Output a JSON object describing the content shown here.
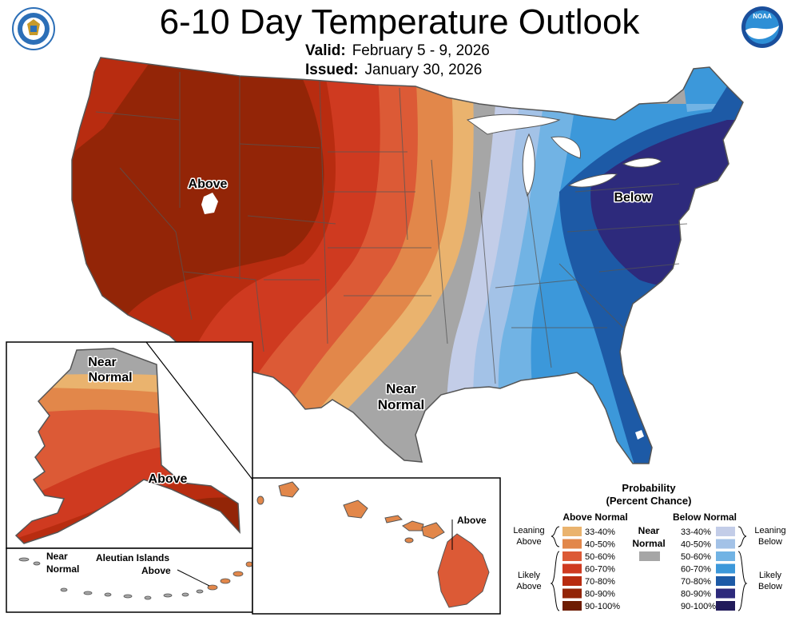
{
  "header": {
    "title": "6-10 Day Temperature Outlook",
    "valid_label": "Valid:",
    "valid_value": "February 5 - 9, 2026",
    "issued_label": "Issued:",
    "issued_value": "January 30, 2026"
  },
  "logos": {
    "left": "department-of-commerce-seal",
    "right": "noaa-logo"
  },
  "map_labels": {
    "west": "Above",
    "east": "Below",
    "texas_line1": "Near",
    "texas_line2": "Normal",
    "alaska_near_line1": "Near",
    "alaska_near_line2": "Normal",
    "alaska_above": "Above",
    "hawaii_above": "Above",
    "aleutian_title": "Aleutian Islands",
    "aleutian_near_line1": "Near",
    "aleutian_near_line2": "Normal",
    "aleutian_above": "Above"
  },
  "legend": {
    "title_line1": "Probability",
    "title_line2": "(Percent Chance)",
    "above_header": "Above Normal",
    "below_header": "Below Normal",
    "near_line1": "Near",
    "near_line2": "Normal",
    "near_color": "#a6a6a6",
    "leaning_above_1": "Leaning",
    "leaning_above_2": "Above",
    "likely_above_1": "Likely",
    "likely_above_2": "Above",
    "leaning_below_1": "Leaning",
    "leaning_below_2": "Below",
    "likely_below_1": "Likely",
    "likely_below_2": "Below",
    "above": [
      {
        "label": "33-40%",
        "color": "#eab36e"
      },
      {
        "label": "40-50%",
        "color": "#e2874a"
      },
      {
        "label": "50-60%",
        "color": "#dc5a36"
      },
      {
        "label": "60-70%",
        "color": "#cf3a20"
      },
      {
        "label": "70-80%",
        "color": "#b82c10"
      },
      {
        "label": "80-90%",
        "color": "#932507"
      },
      {
        "label": "90-100%",
        "color": "#6e1d03"
      }
    ],
    "below": [
      {
        "label": "33-40%",
        "color": "#c3cde8"
      },
      {
        "label": "40-50%",
        "color": "#a3c2e7"
      },
      {
        "label": "50-60%",
        "color": "#71b3e4"
      },
      {
        "label": "60-70%",
        "color": "#3c98da"
      },
      {
        "label": "70-80%",
        "color": "#1d5aa6"
      },
      {
        "label": "80-90%",
        "color": "#2d2a7c"
      },
      {
        "label": "90-100%",
        "color": "#211b5a"
      }
    ]
  }
}
